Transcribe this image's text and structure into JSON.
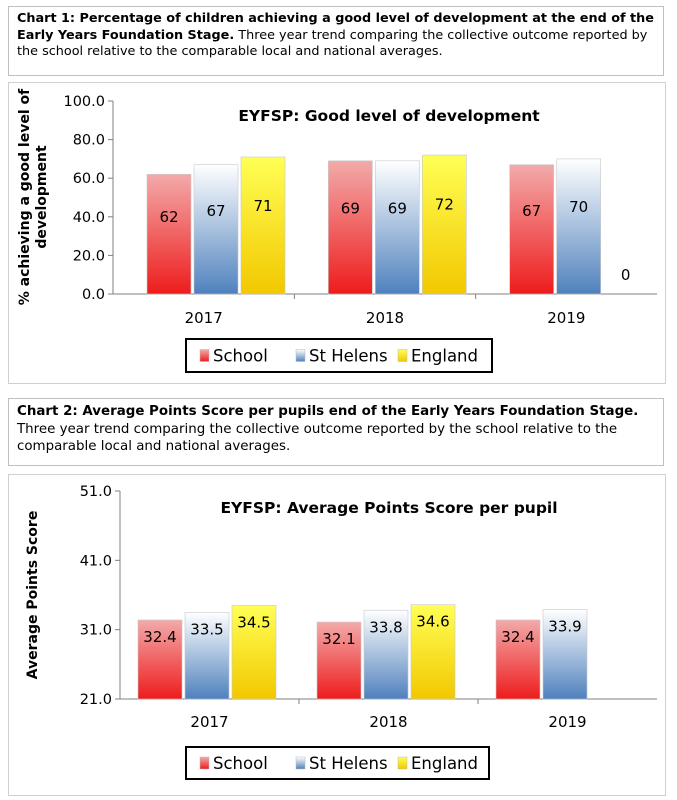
{
  "captions": [
    {
      "bold": "Chart 1: Percentage of children achieving a good level of development at the end of the Early Years Foundation Stage.",
      "text": " Three year trend comparing the collective outcome reported by the school relative to the comparable local and national averages."
    },
    {
      "bold": "Chart 2: Average Points Score per pupils end of the Early Years Foundation Stage.",
      "text": " Three year trend comparing the collective outcome reported by the school relative to the comparable local and national averages."
    }
  ],
  "colors": {
    "school_top": "#f3aaaa",
    "school_bottom": "#ee1c1c",
    "sthelens_top": "#ffffff",
    "sthelens_bottom": "#4f81bd",
    "england_top": "#ffff55",
    "england_bottom": "#f2c800"
  },
  "chart_data": [
    {
      "type": "bar",
      "title": "EYFSP: Good level of development",
      "ylabel": "% achieving a good level of development",
      "xlabel": "",
      "categories": [
        "2017",
        "2018",
        "2019"
      ],
      "ylim": [
        0,
        100
      ],
      "yticks": [
        0,
        20,
        40,
        60,
        80,
        100
      ],
      "ytick_labels": [
        "0.0",
        "20.0",
        "40.0",
        "60.0",
        "80.0",
        "100.0"
      ],
      "series": [
        {
          "name": "School",
          "values": [
            62,
            69,
            67
          ],
          "labels": [
            "62",
            "69",
            "67"
          ]
        },
        {
          "name": "St Helens",
          "values": [
            67,
            69,
            70
          ],
          "labels": [
            "67",
            "69",
            "70"
          ]
        },
        {
          "name": "England",
          "values": [
            71,
            72,
            0
          ],
          "labels": [
            "71",
            "72",
            "0"
          ]
        }
      ],
      "legend": "bottom"
    },
    {
      "type": "bar",
      "title": "EYFSP: Average Points Score per pupil",
      "ylabel": "Average Points Score",
      "xlabel": "",
      "categories": [
        "2017",
        "2018",
        "2019"
      ],
      "ylim": [
        21,
        51
      ],
      "yticks": [
        21,
        31,
        41,
        51
      ],
      "ytick_labels": [
        "21.0",
        "31.0",
        "41.0",
        "51.0"
      ],
      "series": [
        {
          "name": "School",
          "values": [
            32.4,
            32.1,
            32.4
          ],
          "labels": [
            "32.4",
            "32.1",
            "32.4"
          ]
        },
        {
          "name": "St Helens",
          "values": [
            33.5,
            33.8,
            33.9
          ],
          "labels": [
            "33.5",
            "33.8",
            "33.9"
          ]
        },
        {
          "name": "England",
          "values": [
            34.5,
            34.6,
            null
          ],
          "labels": [
            "34.5",
            "34.6",
            ""
          ]
        }
      ],
      "legend": "bottom"
    }
  ]
}
